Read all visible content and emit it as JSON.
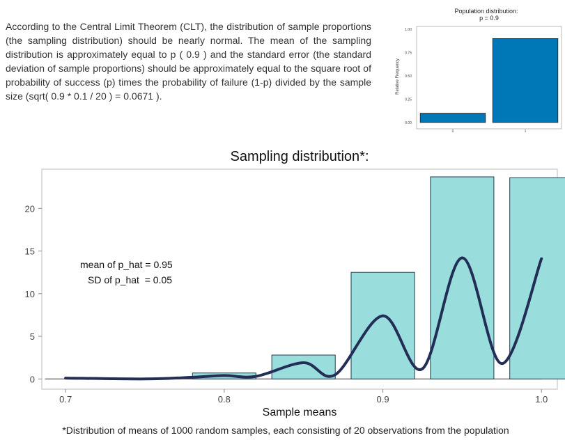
{
  "intro_text": "According to the Central Limit Theorem (CLT), the distribution of sample proportions (the sampling distribution) should be nearly normal. The mean of the sampling distribution is approximately equal to p ( 0.9 ) and the standard error (the standard deviation of sample proportions) should be approximately equal to the square root of probability of success (p) times the probability of failure (1-p) divided by the sample size (sqrt( 0.9 * 0.1 / 20 ) = 0.0671 ).",
  "footnote": "*Distribution of means of 1000 random samples, each consisting of 20 observations from the population",
  "colors": {
    "population_bar": "#0077b6",
    "sampling_bar": "#99dddd",
    "density_line": "#222e55",
    "frame": "#bbbbbb"
  },
  "chart_data": [
    {
      "type": "bar",
      "title": "Population distribution:",
      "subtitle": "p = 0.9",
      "ylabel": "Relative Frequency",
      "categories": [
        "0",
        "1"
      ],
      "values": [
        0.1,
        0.9
      ],
      "ylim": [
        0,
        1
      ],
      "yticks": [
        "0.00",
        "0.25",
        "0.50",
        "0.75",
        "1.00"
      ],
      "grid": false
    },
    {
      "type": "bar",
      "title": "Sampling distribution*:",
      "xlabel": "Sample means",
      "ylabel": "",
      "bins": [
        {
          "center": 0.8,
          "value": 0.7
        },
        {
          "center": 0.85,
          "value": 2.8
        },
        {
          "center": 0.9,
          "value": 12.5
        },
        {
          "center": 0.95,
          "value": 23.7
        },
        {
          "center": 1.0,
          "value": 23.6
        }
      ],
      "bin_width": 0.04,
      "density_curve": {
        "x": [
          0.7,
          0.75,
          0.78,
          0.8,
          0.82,
          0.85,
          0.87,
          0.9,
          0.925,
          0.95,
          0.975,
          1.0
        ],
        "y": [
          0.1,
          0.0,
          0.2,
          0.4,
          0.3,
          1.9,
          0.5,
          7.4,
          1.2,
          14.2,
          1.8,
          14.1
        ]
      },
      "xlim": [
        0.685,
        1.01
      ],
      "ylim": [
        -1.2,
        24.6
      ],
      "xticks": [
        "0.7",
        "0.8",
        "0.9",
        "1.0"
      ],
      "yticks": [
        "0",
        "5",
        "10",
        "15",
        "20"
      ],
      "annotations": [
        "mean of p_hat = 0.95",
        "SD of p_hat  = 0.05"
      ],
      "grid": false
    }
  ]
}
